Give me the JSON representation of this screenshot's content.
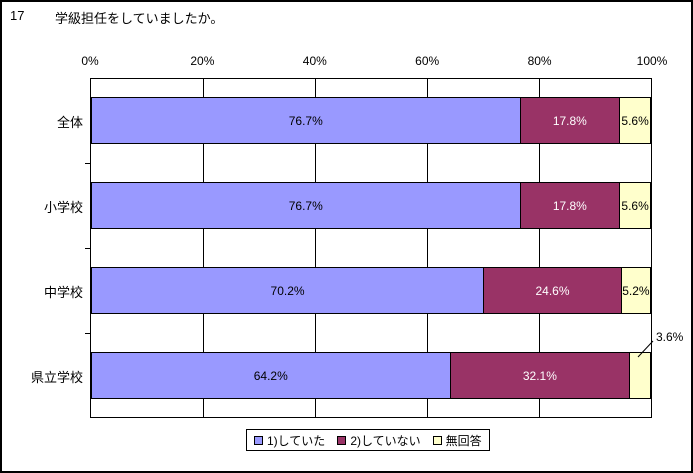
{
  "header": {
    "number": "17",
    "title": "学級担任をしていましたか。"
  },
  "chart_data": {
    "type": "bar",
    "orientation": "horizontal",
    "stacked": true,
    "title": "学級担任をしていましたか。",
    "categories": [
      "全体",
      "小学校",
      "中学校",
      "県立学校"
    ],
    "series": [
      {
        "name": "1)していた",
        "color": "#9999FF",
        "label_color": "#000000",
        "values": [
          76.7,
          76.7,
          70.2,
          64.2
        ]
      },
      {
        "name": "2)していない",
        "color": "#993366",
        "label_color": "#FFFFFF",
        "values": [
          17.8,
          17.8,
          24.6,
          32.1
        ]
      },
      {
        "name": "無回答",
        "color": "#FFFFCC",
        "label_color": "#000000",
        "values": [
          5.6,
          5.6,
          5.2,
          3.6
        ]
      }
    ],
    "x_ticks": [
      "0%",
      "20%",
      "40%",
      "60%",
      "80%",
      "100%"
    ],
    "xlim": [
      0,
      100
    ],
    "gridline_percents": [
      20,
      40,
      60,
      80
    ],
    "grid": true,
    "legend_position": "bottom",
    "callout": {
      "text": "3.6%",
      "category_index": 3,
      "series_index": 2
    }
  }
}
